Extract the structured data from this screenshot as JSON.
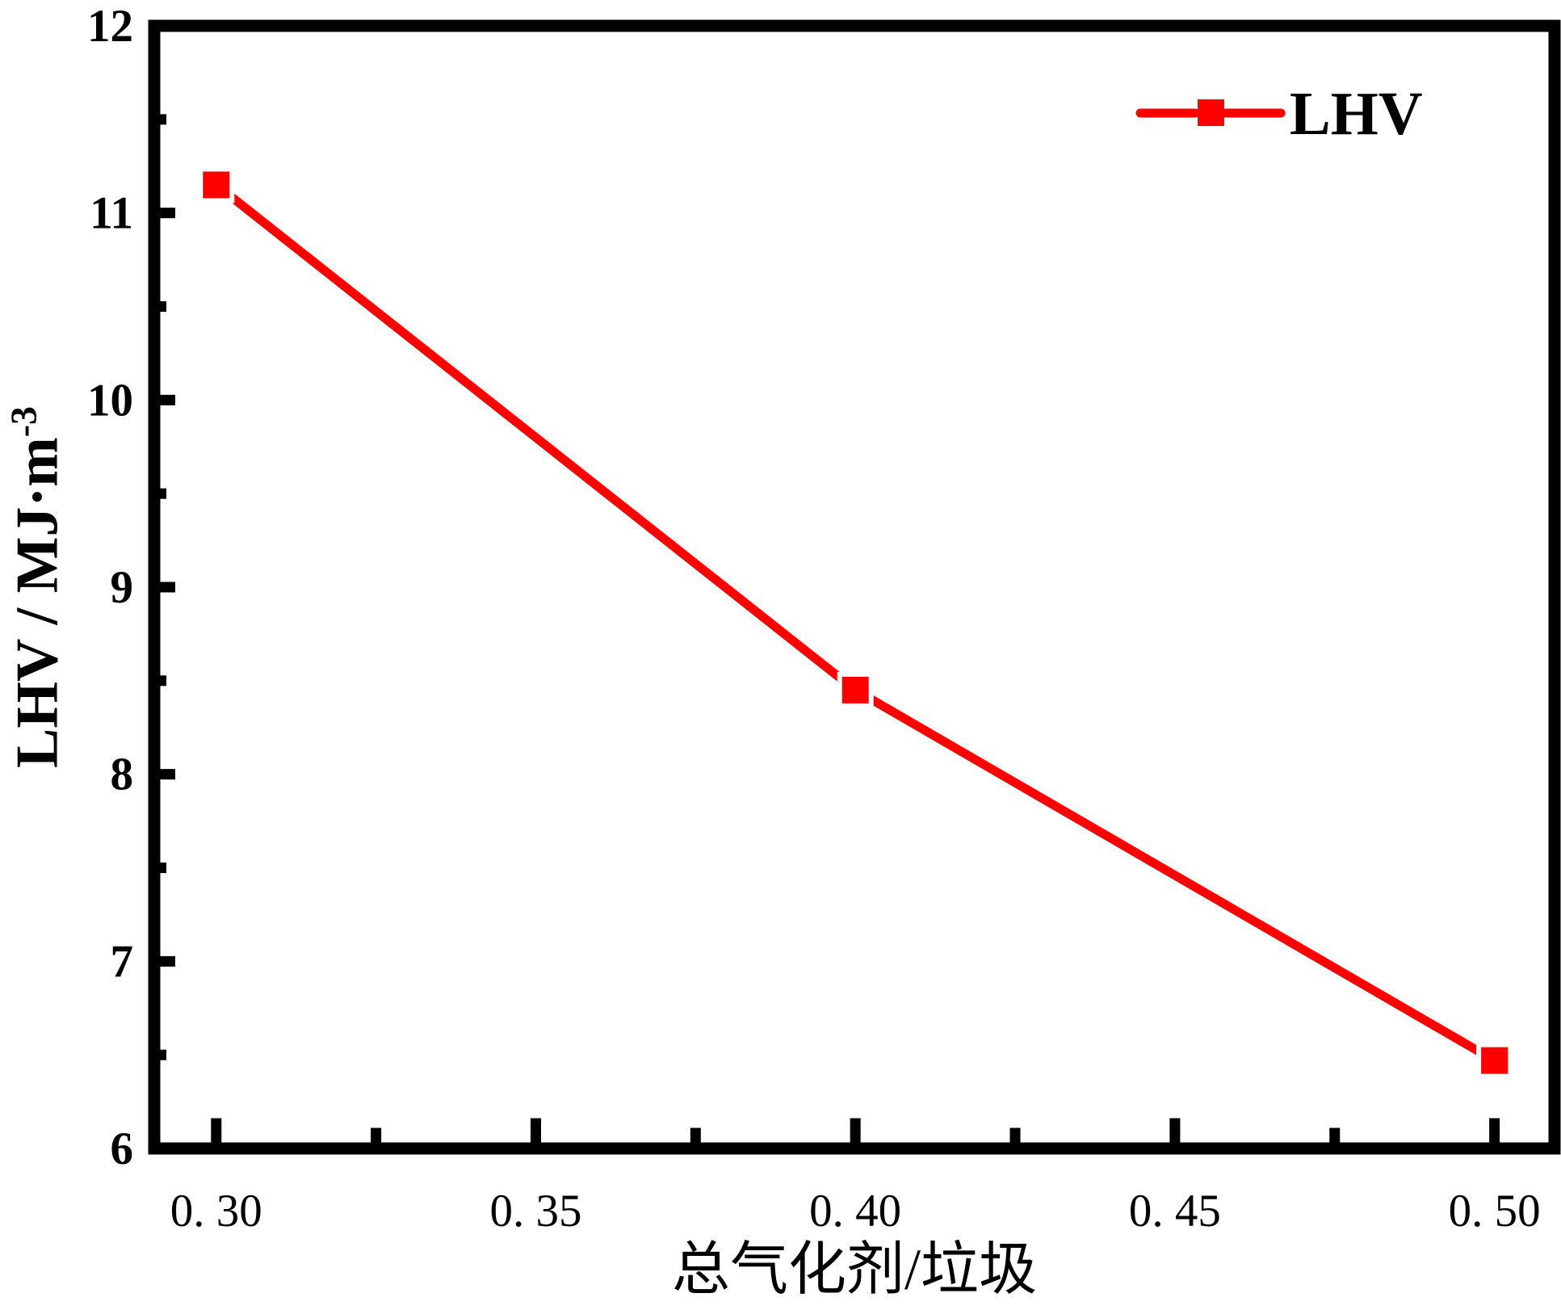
{
  "figure": {
    "background": "#ffffff",
    "axis_color": "#000000"
  },
  "chart_data": {
    "type": "line",
    "title": "",
    "xlabel": "总气化剂/垃圾",
    "ylabel": "LHV / MJ·m⁻³",
    "ylabel_base": "LHV / MJ·m",
    "ylabel_superscript": "-3",
    "xlim": [
      0.2903,
      0.5094
    ],
    "ylim": [
      6,
      12
    ],
    "grid": false,
    "x_major_ticks": [
      0.3,
      0.35,
      0.4,
      0.45,
      0.5
    ],
    "x_major_tick_labels": [
      "0. 30",
      "0. 35",
      "0. 40",
      "0. 45",
      "0. 50"
    ],
    "x_minor_ticks": [
      0.325,
      0.375,
      0.425,
      0.475
    ],
    "y_major_ticks": [
      6,
      7,
      8,
      9,
      10,
      11,
      12
    ],
    "y_major_tick_labels": [
      "6",
      "7",
      "8",
      "9",
      "10",
      "11",
      "12"
    ],
    "y_minor_ticks": [
      6.5,
      7.5,
      8.5,
      9.5,
      10.5,
      11.5
    ],
    "series": [
      {
        "name": "LHV",
        "color": "#ff0000",
        "marker": "square",
        "x": [
          0.3,
          0.4,
          0.5
        ],
        "y": [
          11.15,
          8.45,
          6.47
        ]
      }
    ],
    "legend": {
      "position": "top-right",
      "entries": [
        {
          "label": "LHV",
          "color": "#ff0000",
          "marker": "square"
        }
      ]
    }
  }
}
